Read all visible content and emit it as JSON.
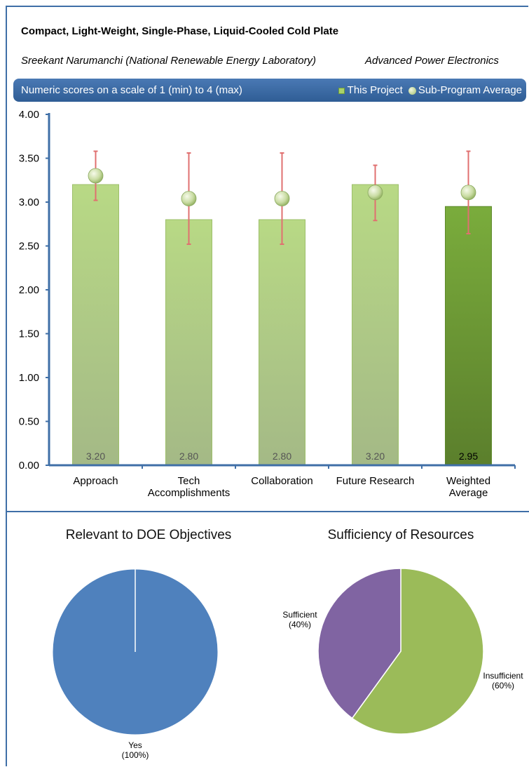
{
  "header": {
    "title": "Compact, Light-Weight, Single-Phase, Liquid-Cooled Cold Plate",
    "author": "Sreekant Narumanchi (National Renewable Energy Laboratory)",
    "program": "Advanced Power Electronics",
    "scale_note": "Numeric scores on a scale of 1 (min) to 4 (max)",
    "legend_project": "This Project",
    "legend_average": "Sub-Program Average"
  },
  "colors": {
    "frame": "#3f6fa7",
    "bar": "#b3d27e",
    "bar_weighted": "#6f9a34",
    "error_bar": "#e07070",
    "pie_blue": "#4f81bd",
    "pie_green": "#9bbb59",
    "pie_purple": "#8064a2"
  },
  "chart_data": [
    {
      "type": "bar",
      "categories": [
        "Approach",
        "Tech Accomplishments",
        "Collaboration",
        "Future Research",
        "Weighted Average"
      ],
      "tick_labels": [
        [
          "Approach"
        ],
        [
          "Tech",
          "Accomplishments"
        ],
        [
          "Collaboration"
        ],
        [
          "Future Research"
        ],
        [
          "Weighted",
          "Average"
        ]
      ],
      "series": [
        {
          "name": "This Project",
          "values": [
            3.2,
            2.8,
            2.8,
            3.2,
            2.95
          ],
          "labels": [
            "3.20",
            "2.80",
            "2.80",
            "3.20",
            "2.95"
          ]
        },
        {
          "name": "Sub-Program Average",
          "values": [
            3.3,
            3.04,
            3.04,
            3.11,
            3.11
          ]
        }
      ],
      "error_bars": {
        "low": [
          3.02,
          2.52,
          2.52,
          2.79,
          2.64
        ],
        "high": [
          3.58,
          3.56,
          3.56,
          3.42,
          3.58
        ]
      },
      "ylim": [
        0,
        4
      ],
      "yticks": [
        "0.00",
        "0.50",
        "1.00",
        "1.50",
        "2.00",
        "2.50",
        "3.00",
        "3.50",
        "4.00"
      ],
      "grid": false,
      "legend_position": "top-right"
    },
    {
      "type": "pie",
      "title": "Relevant to DOE Objectives",
      "slices": [
        {
          "label": "Yes",
          "pct_label": "(100%)",
          "value": 100
        }
      ]
    },
    {
      "type": "pie",
      "title": "Sufficiency of Resources",
      "slices": [
        {
          "label": "Insufficient",
          "pct_label": "(60%)",
          "value": 60
        },
        {
          "label": "Sufficient",
          "pct_label": "(40%)",
          "value": 40
        }
      ]
    }
  ]
}
